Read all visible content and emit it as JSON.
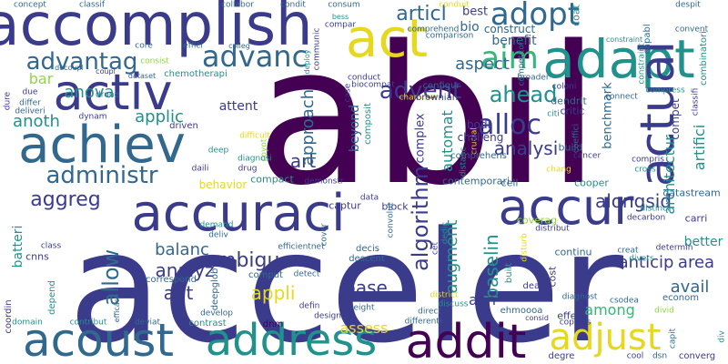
{
  "palette": {
    "dark_purple": "#440154",
    "indigo": "#3b3b8c",
    "blue": "#31688e",
    "teal": "#21918c",
    "green": "#35b779",
    "lime": "#90d743",
    "yellow": "#e6d81e"
  },
  "words": [
    {
      "text": "abil",
      "color": "dark_purple"
    },
    {
      "text": "acceler",
      "color": "indigo"
    },
    {
      "text": "accomplish",
      "color": "indigo"
    },
    {
      "text": "act",
      "color": "yellow"
    },
    {
      "text": "adapt",
      "color": "teal"
    },
    {
      "text": "actual",
      "color": "indigo"
    },
    {
      "text": "accuraci",
      "color": "indigo"
    },
    {
      "text": "accur",
      "color": "indigo"
    },
    {
      "text": "achiev",
      "color": "blue"
    },
    {
      "text": "activ",
      "color": "indigo"
    },
    {
      "text": "acoust",
      "color": "blue"
    },
    {
      "text": "address",
      "color": "teal"
    },
    {
      "text": "addit",
      "color": "dark_purple"
    },
    {
      "text": "adjust",
      "color": "yellow"
    },
    {
      "text": "adopt",
      "color": "blue"
    },
    {
      "text": "advanc",
      "color": "blue"
    },
    {
      "text": "advantag",
      "color": "blue"
    },
    {
      "text": "advent",
      "color": "indigo"
    },
    {
      "text": "aim",
      "color": "green"
    },
    {
      "text": "alloc",
      "color": "indigo"
    },
    {
      "text": "administr",
      "color": "blue"
    },
    {
      "text": "aggreg",
      "color": "indigo"
    },
    {
      "text": "ahead",
      "color": "teal"
    },
    {
      "text": "articl",
      "color": "blue"
    },
    {
      "text": "anova",
      "color": "teal"
    },
    {
      "text": "aspect",
      "color": "blue"
    },
    {
      "text": "anoth",
      "color": "teal"
    },
    {
      "text": "applic",
      "color": "teal"
    },
    {
      "text": "algorithm",
      "color": "indigo"
    },
    {
      "text": "alongsid",
      "color": "indigo"
    },
    {
      "text": "analysi",
      "color": "indigo"
    },
    {
      "text": "architectur",
      "color": "teal"
    },
    {
      "text": "artifici",
      "color": "teal"
    },
    {
      "text": "art",
      "color": "indigo"
    },
    {
      "text": "approach",
      "color": "blue"
    },
    {
      "text": "allow",
      "color": "blue"
    },
    {
      "text": "ambigu",
      "color": "indigo"
    },
    {
      "text": "analyz",
      "color": "indigo"
    },
    {
      "text": "appli",
      "color": "yellow"
    },
    {
      "text": "ant",
      "color": "indigo"
    },
    {
      "text": "balanc",
      "color": "blue"
    },
    {
      "text": "base",
      "color": "indigo"
    },
    {
      "text": "baselin",
      "color": "teal"
    },
    {
      "text": "augment",
      "color": "teal"
    },
    {
      "text": "anticip",
      "color": "indigo"
    },
    {
      "text": "avail",
      "color": "blue"
    },
    {
      "text": "area",
      "color": "indigo"
    },
    {
      "text": "better",
      "color": "teal"
    },
    {
      "text": "among",
      "color": "green"
    },
    {
      "text": "ann",
      "color": "indigo"
    },
    {
      "text": "assess",
      "color": "yellow"
    },
    {
      "text": "batteri",
      "color": "teal"
    },
    {
      "text": "automat",
      "color": "teal"
    },
    {
      "text": "benefit",
      "color": "blue"
    },
    {
      "text": "benchmark",
      "color": "blue"
    },
    {
      "text": "best",
      "color": "indigo"
    },
    {
      "text": "bio",
      "color": "blue"
    },
    {
      "text": "bar",
      "color": "lime"
    },
    {
      "text": "beyond",
      "color": "blue"
    },
    {
      "text": "attent",
      "color": "indigo"
    },
    {
      "text": "behavior",
      "color": "yellow"
    },
    {
      "text": "concept",
      "color": "blue"
    },
    {
      "text": "classif",
      "color": "blue"
    },
    {
      "text": "collabor",
      "color": "blue"
    },
    {
      "text": "condit",
      "color": "blue"
    },
    {
      "text": "consum",
      "color": "blue"
    },
    {
      "text": "conduit",
      "color": "yellow"
    },
    {
      "text": "construct",
      "color": "blue"
    },
    {
      "text": "coat",
      "color": "teal"
    },
    {
      "text": "capabl",
      "color": "blue"
    },
    {
      "text": "combinatori",
      "color": "teal"
    },
    {
      "text": "despit",
      "color": "blue"
    },
    {
      "text": "convent",
      "color": "blue"
    },
    {
      "text": "core",
      "color": "blue"
    },
    {
      "text": "effici",
      "color": "blue"
    },
    {
      "text": "colleg",
      "color": "blue"
    },
    {
      "text": "consist",
      "color": "lime"
    },
    {
      "text": "chemotherapi",
      "color": "teal"
    },
    {
      "text": "dataset",
      "color": "blue"
    },
    {
      "text": "decoupl",
      "color": "blue"
    },
    {
      "text": "coupl",
      "color": "indigo"
    },
    {
      "text": "communic",
      "color": "indigo"
    },
    {
      "text": "deploy",
      "color": "teal"
    },
    {
      "text": "compar",
      "color": "indigo"
    },
    {
      "text": "comprehend",
      "color": "blue"
    },
    {
      "text": "comparison",
      "color": "blue"
    },
    {
      "text": "competitor",
      "color": "blue"
    },
    {
      "text": "bess",
      "color": "teal"
    },
    {
      "text": "conduct",
      "color": "indigo"
    },
    {
      "text": "case",
      "color": "indigo"
    },
    {
      "text": "biocompat",
      "color": "indigo"
    },
    {
      "text": "character",
      "color": "yellow"
    },
    {
      "text": "constraint",
      "color": "teal"
    },
    {
      "text": "compress",
      "color": "teal"
    },
    {
      "text": "connect",
      "color": "blue"
    },
    {
      "text": "classifi",
      "color": "indigo"
    },
    {
      "text": "broader",
      "color": "blue"
    },
    {
      "text": "coloni",
      "color": "indigo"
    },
    {
      "text": "citi",
      "color": "teal"
    },
    {
      "text": "coeffici",
      "color": "blue"
    },
    {
      "text": "compris",
      "color": "indigo"
    },
    {
      "text": "cross",
      "color": "teal"
    },
    {
      "text": "cancer",
      "color": "indigo"
    },
    {
      "text": "chang",
      "color": "yellow"
    },
    {
      "text": "crucial",
      "color": "yellow"
    },
    {
      "text": "bodi",
      "color": "indigo"
    },
    {
      "text": "challeng",
      "color": "indigo"
    },
    {
      "text": "composit",
      "color": "teal"
    },
    {
      "text": "complex",
      "color": "indigo"
    },
    {
      "text": "configur",
      "color": "blue"
    },
    {
      "text": "brownian",
      "color": "indigo"
    },
    {
      "text": "critic",
      "color": "indigo"
    },
    {
      "text": "dendrit",
      "color": "blue"
    },
    {
      "text": "compet",
      "color": "indigo"
    },
    {
      "text": "build",
      "color": "blue"
    },
    {
      "text": "comprehens",
      "color": "blue"
    },
    {
      "text": "cell",
      "color": "blue"
    },
    {
      "text": "contemporari",
      "color": "blue"
    },
    {
      "text": "cooper",
      "color": "teal"
    },
    {
      "text": "datastream",
      "color": "blue"
    },
    {
      "text": "carri",
      "color": "indigo"
    },
    {
      "text": "compact",
      "color": "teal"
    },
    {
      "text": "captur",
      "color": "indigo"
    },
    {
      "text": "block",
      "color": "indigo"
    },
    {
      "text": "cnns",
      "color": "indigo"
    },
    {
      "text": "class",
      "color": "indigo"
    },
    {
      "text": "correspond",
      "color": "blue"
    },
    {
      "text": "comput",
      "color": "blue"
    },
    {
      "text": "deepglob",
      "color": "blue"
    },
    {
      "text": "continu",
      "color": "blue"
    },
    {
      "text": "cost",
      "color": "indigo"
    },
    {
      "text": "built",
      "color": "teal"
    },
    {
      "text": "creat",
      "color": "blue"
    },
    {
      "text": "divers",
      "color": "teal"
    },
    {
      "text": "econom",
      "color": "blue"
    },
    {
      "text": "determin",
      "color": "indigo"
    },
    {
      "text": "coordin",
      "color": "indigo"
    },
    {
      "text": "depend",
      "color": "teal"
    },
    {
      "text": "contribut",
      "color": "teal"
    },
    {
      "text": "domain",
      "color": "teal"
    },
    {
      "text": "deviat",
      "color": "blue"
    },
    {
      "text": "contrast",
      "color": "teal"
    },
    {
      "text": "dnm",
      "color": "dark_purple"
    },
    {
      "text": "dead",
      "color": "indigo"
    },
    {
      "text": "effect",
      "color": "indigo"
    },
    {
      "text": "degre",
      "color": "indigo"
    },
    {
      "text": "converg",
      "color": "indigo"
    },
    {
      "text": "divid",
      "color": "lime"
    },
    {
      "text": "capit",
      "color": "blue"
    },
    {
      "text": "develop",
      "color": "blue"
    },
    {
      "text": "eight",
      "color": "blue"
    },
    {
      "text": "discuss",
      "color": "teal"
    },
    {
      "text": "ehmoooa",
      "color": "blue"
    },
    {
      "text": "cool",
      "color": "indigo"
    },
    {
      "text": "dsn",
      "color": "blue"
    },
    {
      "text": "consid",
      "color": "indigo"
    },
    {
      "text": "copious",
      "color": "indigo"
    },
    {
      "text": "csodea",
      "color": "blue"
    },
    {
      "text": "diagnost",
      "color": "blue"
    },
    {
      "text": "differenti",
      "color": "blue"
    },
    {
      "text": "district",
      "color": "yellow"
    },
    {
      "text": "direct",
      "color": "blue"
    },
    {
      "text": "design",
      "color": "indigo"
    },
    {
      "text": "defin",
      "color": "indigo"
    },
    {
      "text": "cover",
      "color": "blue"
    },
    {
      "text": "decis",
      "color": "blue"
    },
    {
      "text": "descent",
      "color": "blue"
    },
    {
      "text": "efficientnet",
      "color": "blue"
    },
    {
      "text": "detect",
      "color": "blue"
    },
    {
      "text": "efficaci",
      "color": "blue"
    },
    {
      "text": "dure",
      "color": "indigo"
    },
    {
      "text": "differ",
      "color": "blue"
    },
    {
      "text": "deliveri",
      "color": "blue"
    },
    {
      "text": "due",
      "color": "indigo"
    },
    {
      "text": "dynam",
      "color": "indigo"
    },
    {
      "text": "drone",
      "color": "blue"
    },
    {
      "text": "driven",
      "color": "indigo"
    },
    {
      "text": "difficult",
      "color": "yellow"
    },
    {
      "text": "coyot",
      "color": "lime"
    },
    {
      "text": "diagnosi",
      "color": "teal"
    },
    {
      "text": "drug",
      "color": "indigo"
    },
    {
      "text": "demonstr",
      "color": "indigo"
    },
    {
      "text": "daili",
      "color": "indigo"
    },
    {
      "text": "data",
      "color": "indigo"
    },
    {
      "text": "convolut",
      "color": "blue"
    },
    {
      "text": "deep",
      "color": "teal"
    },
    {
      "text": "demand",
      "color": "teal"
    },
    {
      "text": "deliv",
      "color": "blue"
    },
    {
      "text": "coverag",
      "color": "lime"
    },
    {
      "text": "decarbon",
      "color": "indigo"
    },
    {
      "text": "distinct",
      "color": "teal"
    },
    {
      "text": "cet",
      "color": "indigo"
    },
    {
      "text": "dedic",
      "color": "teal"
    },
    {
      "text": "distanc",
      "color": "teal"
    },
    {
      "text": "disturb",
      "color": "yellow"
    },
    {
      "text": "distribut",
      "color": "indigo"
    },
    {
      "text": "div",
      "color": "teal"
    },
    {
      "text": "discover",
      "color": "blue"
    }
  ]
}
